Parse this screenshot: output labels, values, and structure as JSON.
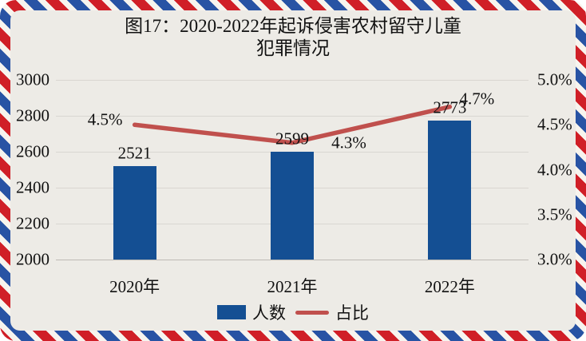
{
  "chart_data": {
    "type": "bar+line combo",
    "title": "图17：2020-2022年起诉侵害农村留守儿童\n犯罪情况",
    "categories": [
      "2020年",
      "2021年",
      "2022年"
    ],
    "series": [
      {
        "name": "人数",
        "type": "bar",
        "axis": "left",
        "color": "#144f93",
        "values": [
          2521,
          2599,
          2773
        ],
        "labels": [
          "2521",
          "2599",
          "2773"
        ]
      },
      {
        "name": "占比",
        "type": "line",
        "axis": "right",
        "color": "#c0504d",
        "values": [
          4.5,
          4.3,
          4.7
        ],
        "labels": [
          "4.5%",
          "4.3%",
          "4.7%"
        ]
      }
    ],
    "left_axis": {
      "min": 2000,
      "max": 3000,
      "step": 200,
      "ticks": [
        "3000",
        "2800",
        "2600",
        "2400",
        "2200",
        "2000"
      ]
    },
    "right_axis": {
      "min": 3.0,
      "max": 5.0,
      "step": 0.5,
      "ticks": [
        "5.0%",
        "4.5%",
        "4.0%",
        "3.5%",
        "3.0%"
      ]
    },
    "legend": [
      {
        "label": "人数",
        "swatch": "bar",
        "color": "#144f93"
      },
      {
        "label": "占比",
        "swatch": "line",
        "color": "#c0504d"
      }
    ],
    "grid": true,
    "legend_position": "bottom"
  },
  "colors": {
    "paper": "#edebe6",
    "grid": "#d9d6d1",
    "bar_blue": "#144f93",
    "line_red": "#c0504d",
    "border_red": "#d01f27",
    "border_blue": "#2853a4",
    "text": "#111111"
  }
}
